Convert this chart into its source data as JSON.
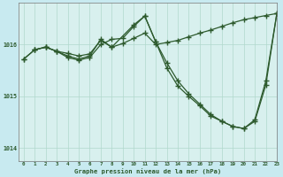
{
  "title": "Graphe pression niveau de la mer (hPa)",
  "background_color": "#c8eaf0",
  "plot_bg_color": "#d8f0ee",
  "grid_color": "#b0d8cc",
  "line_color": "#2d5a2d",
  "xlim": [
    -0.5,
    23
  ],
  "ylim": [
    1013.75,
    1016.8
  ],
  "yticks": [
    1014,
    1015,
    1016
  ],
  "xticks": [
    0,
    1,
    2,
    3,
    4,
    5,
    6,
    7,
    8,
    9,
    10,
    11,
    12,
    13,
    14,
    15,
    16,
    17,
    18,
    19,
    20,
    21,
    22,
    23
  ],
  "series1_x": [
    0,
    1,
    2,
    3,
    4,
    5,
    6,
    7,
    8,
    9,
    10,
    11,
    12,
    13,
    14,
    15,
    16,
    17,
    18,
    19,
    20,
    21,
    22,
    23
  ],
  "series1_y": [
    1015.72,
    1015.9,
    1015.95,
    1015.87,
    1015.83,
    1015.78,
    1015.82,
    1016.08,
    1015.95,
    1016.02,
    1016.12,
    1016.22,
    1016.0,
    1016.04,
    1016.08,
    1016.15,
    1016.22,
    1016.28,
    1016.35,
    1016.42,
    1016.48,
    1016.52,
    1016.56,
    1016.6
  ],
  "series2_x": [
    0,
    1,
    2,
    3,
    4,
    5,
    6,
    7,
    8,
    9,
    10,
    11,
    12,
    13,
    14,
    15,
    16,
    17,
    18,
    19,
    20,
    21,
    22,
    23
  ],
  "series2_y": [
    1015.72,
    1015.9,
    1015.95,
    1015.87,
    1015.75,
    1015.7,
    1015.75,
    1016.0,
    1016.1,
    1016.12,
    1016.35,
    1016.55,
    1016.05,
    1015.55,
    1015.2,
    1015.0,
    1014.82,
    1014.62,
    1014.52,
    1014.42,
    1014.38,
    1014.52,
    1015.22,
    1016.6
  ],
  "series3_x": [
    1,
    2,
    3,
    4,
    5,
    6,
    7,
    8,
    10,
    11,
    12,
    13,
    14,
    15,
    16,
    17,
    18,
    19,
    20,
    21,
    22,
    23
  ],
  "series3_y": [
    1015.9,
    1015.95,
    1015.87,
    1015.78,
    1015.72,
    1015.78,
    1016.1,
    1015.95,
    1016.38,
    1016.55,
    1016.05,
    1015.65,
    1015.3,
    1015.05,
    1014.85,
    1014.65,
    1014.52,
    1014.42,
    1014.38,
    1014.55,
    1015.3,
    1016.6
  ]
}
